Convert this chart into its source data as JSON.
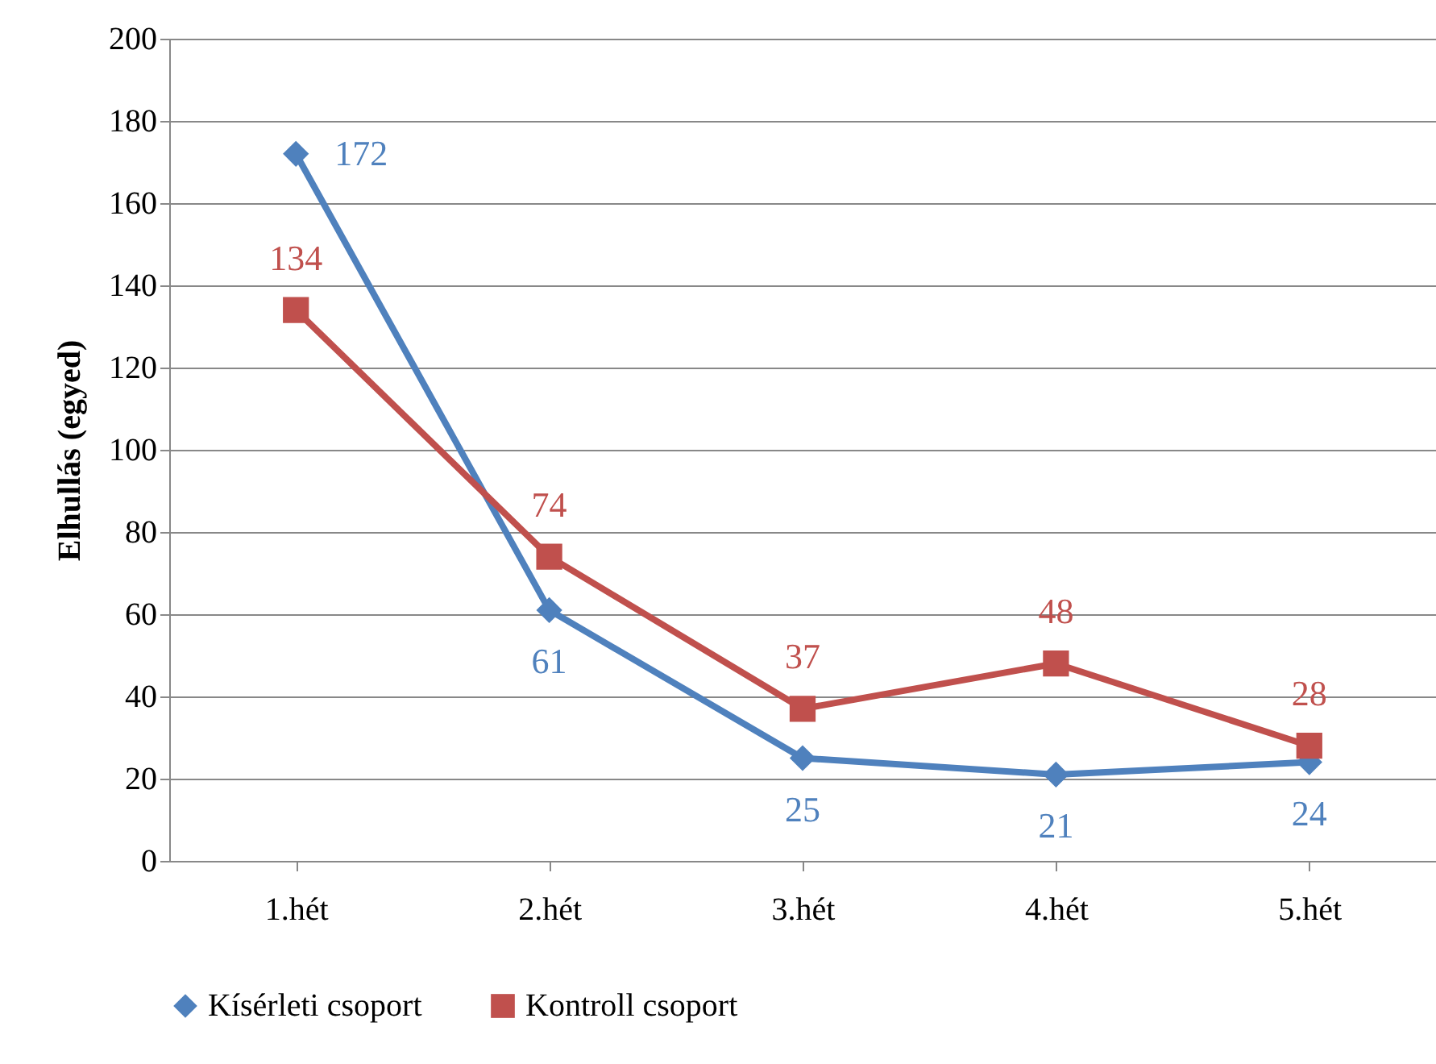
{
  "chart_data": {
    "type": "line",
    "ylabel": "Elhullás (egyed)",
    "categories": [
      "1.hét",
      "2.hét",
      "3.hét",
      "4.hét",
      "5.hét"
    ],
    "series": [
      {
        "name": "Kísérleti csoport",
        "color": "#4f81bd",
        "values": [
          172,
          61,
          25,
          21,
          24
        ],
        "marker": "diamond"
      },
      {
        "name": "Kontroll csoport",
        "color": "#c0504d",
        "values": [
          134,
          74,
          37,
          48,
          28
        ],
        "marker": "square"
      }
    ],
    "ylim": [
      0,
      200
    ],
    "yticks": [
      0,
      20,
      40,
      60,
      80,
      100,
      120,
      140,
      160,
      180,
      200
    ],
    "grid": "y",
    "legend": "bottom",
    "data_labels": true,
    "line_style": "solid"
  }
}
